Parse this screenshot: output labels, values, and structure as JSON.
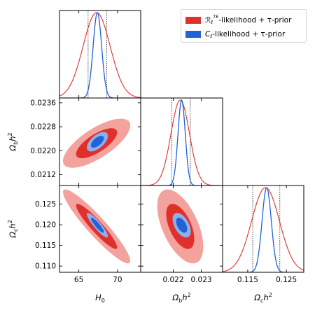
{
  "chart_data": {
    "type": "corner",
    "parameters": [
      "H_0",
      "Ω_b h^2",
      "Ω_c h^2"
    ],
    "axis_labels": {
      "x": [
        "H₀",
        "Ωₗh²",
        "Ωᴄh²"
      ],
      "y": [
        "Ωᵦh²",
        "Ωᴄh²"
      ]
    },
    "axis_label_parts": {
      "H0": {
        "base": "H",
        "sub": "0",
        "sup": ""
      },
      "Obh2": {
        "base": "Ω",
        "sub": "b",
        "tail": "h",
        "sup": "2"
      },
      "Och2": {
        "base": "Ω",
        "sub": "c",
        "tail": "h",
        "sup": "2"
      }
    },
    "ranges": {
      "H0": [
        62.5,
        73.0
      ],
      "Obh2": [
        0.02084,
        0.02376
      ],
      "Och2": [
        0.1085,
        0.1295
      ]
    },
    "ticks": {
      "H0": {
        "values": [
          65,
          70
        ],
        "labels": [
          "65",
          "70"
        ]
      },
      "Obh2_x": {
        "values": [
          0.022,
          0.023
        ],
        "labels": [
          "0.022",
          "0.023"
        ]
      },
      "Obh2_y": {
        "values": [
          0.0212,
          0.022,
          0.0228,
          0.0236
        ],
        "labels": [
          "0.0212",
          "0.0220",
          "0.0228",
          "0.0236"
        ]
      },
      "Och2_x": {
        "values": [
          0.115,
          0.125
        ],
        "labels": [
          "0.115",
          "0.125"
        ]
      },
      "Och2_y": {
        "values": [
          0.11,
          0.115,
          0.12,
          0.125
        ],
        "labels": [
          "0.110",
          "0.115",
          "0.120",
          "0.125"
        ]
      }
    },
    "series": [
      {
        "name": "Rₗ^TE-likelihood + τ-prior",
        "color": "#e0302b",
        "fill_68": "#e0302b",
        "fill_95": "#f4a29d",
        "H0": {
          "mean": 67.3,
          "sigma": 1.75
        },
        "Obh2": {
          "mean": 0.02225,
          "sigma": 0.00033
        },
        "Och2": {
          "mean": 0.1196,
          "sigma": 0.0036
        },
        "corr": {
          "H0_Obh2": 0.72,
          "H0_Och2": -0.93,
          "Obh2_Och2": -0.55
        }
      },
      {
        "name": "Cₗ-likelihood + τ-prior",
        "color": "#1f63d6",
        "fill_68": "#1f63d6",
        "fill_95": "#8cb0ee",
        "H0": {
          "mean": 67.4,
          "sigma": 0.55
        },
        "Obh2": {
          "mean": 0.0223,
          "sigma": 0.00013
        },
        "Och2": {
          "mean": 0.1199,
          "sigma": 0.0012
        },
        "corr": {
          "H0_Obh2": 0.6,
          "H0_Och2": -0.9,
          "Obh2_Och2": -0.5
        }
      }
    ],
    "dotted_lines": {
      "H0": [
        66.2,
        68.6
      ],
      "Obh2": [
        0.02195,
        0.02261
      ],
      "Och2": [
        0.1163,
        0.1233
      ]
    }
  },
  "legend": {
    "items": [
      {
        "color": "#e0302b",
        "prefix": "ℛ",
        "sub": "ℓ",
        "sup": "TE",
        "rest": "-likelihood + τ-prior"
      },
      {
        "color": "#1f63d6",
        "prefix": "C",
        "sub": "ℓ",
        "sup": "",
        "rest": "-likelihood + τ-prior"
      }
    ]
  }
}
